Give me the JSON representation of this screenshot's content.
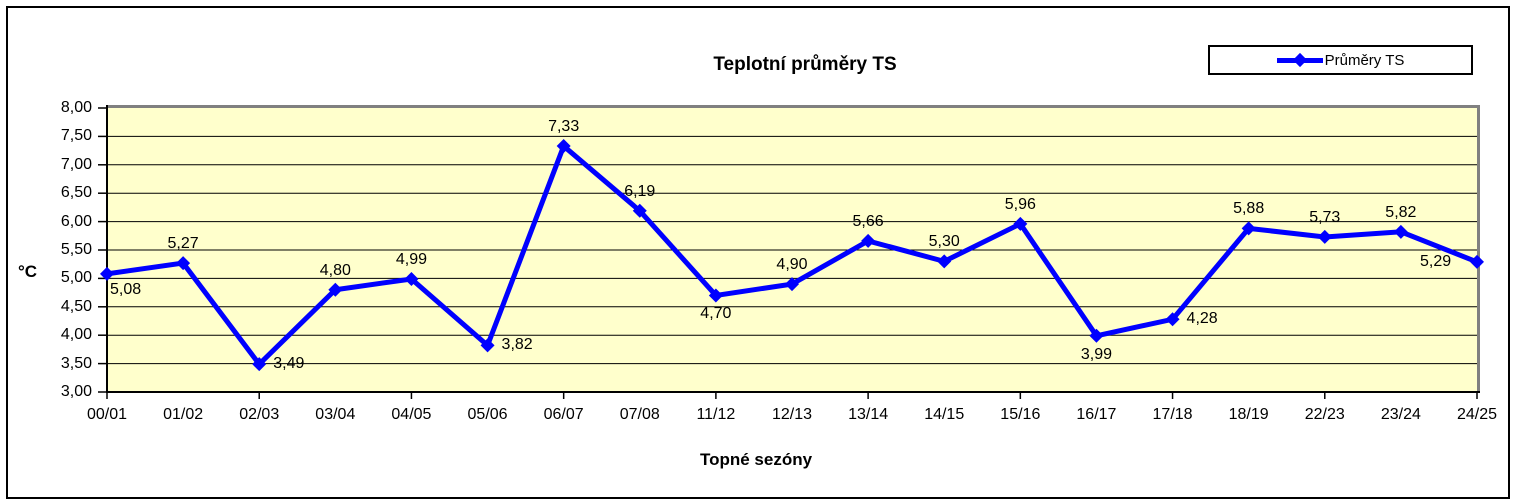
{
  "chart": {
    "title": "Teplotní průměry TS",
    "y_axis_unit": "°C",
    "x_axis_title": "Topné sezóny",
    "legend": {
      "label": "Průměry TS"
    },
    "colors": {
      "series": "#0000FF",
      "plot_background": "#FFFFCC",
      "gridline": "#000000",
      "plot_border_gray": "#808080",
      "axis": "#000000"
    }
  },
  "chart_data": {
    "type": "line",
    "title": "Teplotní průměry TS",
    "xlabel": "Topné sezóny",
    "ylabel": "°C",
    "legend_entries": [
      "Průměry TS"
    ],
    "legend_position": "top-right",
    "grid": true,
    "categories": [
      "00/01",
      "01/02",
      "02/03",
      "03/04",
      "04/05",
      "05/06",
      "06/07",
      "07/08",
      "11/12",
      "12/13",
      "13/14",
      "14/15",
      "15/16",
      "16/17",
      "17/18",
      "18/19",
      "22/23",
      "23/24",
      "24/25"
    ],
    "series": [
      {
        "name": "Průměry TS",
        "values": [
          5.08,
          5.27,
          3.49,
          4.8,
          4.99,
          3.82,
          7.33,
          6.19,
          4.7,
          4.9,
          5.66,
          5.3,
          5.96,
          3.99,
          4.28,
          5.88,
          5.73,
          5.82,
          5.29
        ]
      }
    ],
    "point_labels": [
      "5,08",
      "5,27",
      "3,49",
      "4,80",
      "4,99",
      "3,82",
      "7,33",
      "6,19",
      "4,70",
      "4,90",
      "5,66",
      "5,30",
      "5,96",
      "3,99",
      "4,28",
      "5,88",
      "5,73",
      "5,82",
      "5,29"
    ],
    "point_label_positions": [
      "below-right",
      "above",
      "right",
      "above",
      "above",
      "right",
      "above",
      "above",
      "below",
      "above",
      "above",
      "above",
      "above",
      "below",
      "right",
      "above",
      "above",
      "above",
      "left"
    ],
    "ylim": [
      3.0,
      8.0
    ],
    "ytick_step": 0.5,
    "ytick_labels": [
      "8,00",
      "7,50",
      "7,00",
      "6,50",
      "6,00",
      "5,50",
      "5,00",
      "4,50",
      "4,00",
      "3,50",
      "3,00"
    ]
  }
}
